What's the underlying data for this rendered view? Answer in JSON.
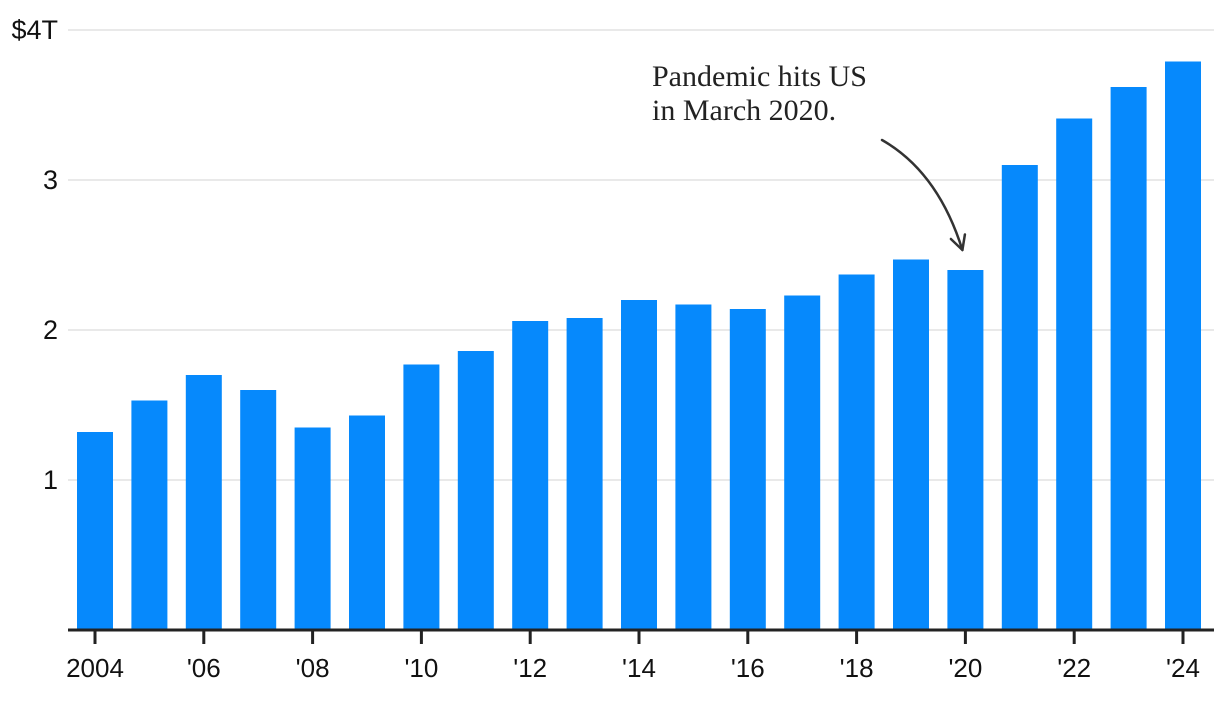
{
  "chart_data": {
    "type": "bar",
    "title": "",
    "xlabel": "",
    "ylabel": "",
    "unit": "trillions USD",
    "ylim": [
      0,
      4
    ],
    "grid": true,
    "legend": false,
    "categories": [
      2004,
      2005,
      2006,
      2007,
      2008,
      2009,
      2010,
      2011,
      2012,
      2013,
      2014,
      2015,
      2016,
      2017,
      2018,
      2019,
      2020,
      2021,
      2022,
      2023,
      2024
    ],
    "values": [
      1.32,
      1.53,
      1.7,
      1.6,
      1.35,
      1.43,
      1.77,
      1.86,
      2.06,
      2.08,
      2.2,
      2.17,
      2.14,
      2.23,
      2.37,
      2.47,
      2.4,
      3.1,
      3.41,
      3.62,
      3.79
    ],
    "y_ticks": [
      {
        "value": 1,
        "label": "1"
      },
      {
        "value": 2,
        "label": "2"
      },
      {
        "value": 3,
        "label": "3"
      },
      {
        "value": 4,
        "label": "$4T"
      }
    ],
    "x_ticks": [
      {
        "year": 2004,
        "label": "2004"
      },
      {
        "year": 2006,
        "label": "'06"
      },
      {
        "year": 2008,
        "label": "'08"
      },
      {
        "year": 2010,
        "label": "'10"
      },
      {
        "year": 2012,
        "label": "'12"
      },
      {
        "year": 2014,
        "label": "'14"
      },
      {
        "year": 2016,
        "label": "'16"
      },
      {
        "year": 2018,
        "label": "'18"
      },
      {
        "year": 2020,
        "label": "'20"
      },
      {
        "year": 2022,
        "label": "'22"
      },
      {
        "year": 2024,
        "label": "'24"
      }
    ],
    "annotation": {
      "line1": "Pandemic hits US",
      "line2": "in March 2020.",
      "target_year": 2020
    },
    "colors": {
      "bar": "#0689fc",
      "gridline": "#e9e9e9",
      "axis": "#222222",
      "tick_text": "#111111",
      "annotation_text": "#222222",
      "arrow": "#333333",
      "background": "#ffffff"
    }
  }
}
